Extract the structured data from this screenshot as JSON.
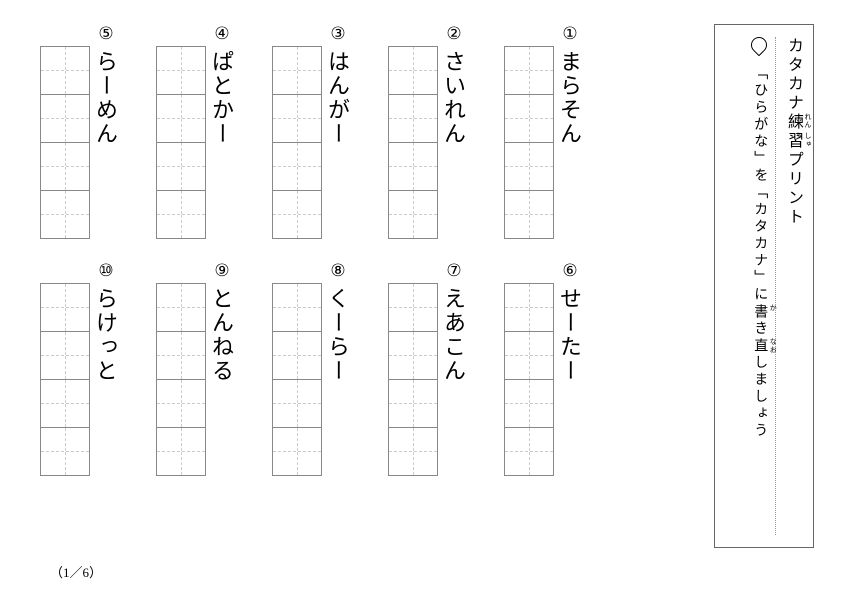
{
  "title": "カタカナ練習プリント",
  "title_ruby": {
    "練": "れん",
    "習": "しゅう"
  },
  "instruction_prefix": "「ひらがな」を「カタカナ」に",
  "instruction_ruby_word": "書き直",
  "instruction_ruby": {
    "書": "か",
    "直": "なお"
  },
  "instruction_suffix": "しましょう",
  "circled": [
    "①",
    "②",
    "③",
    "④",
    "⑤",
    "⑥",
    "⑦",
    "⑧",
    "⑨",
    "⑩"
  ],
  "words": [
    "まらそん",
    "さいれん",
    "はんがー",
    "ぱとかー",
    "らーめん",
    "せーたー",
    "えあこん",
    "くーらー",
    "とんねる",
    "らけっと"
  ],
  "box_count": 4,
  "footer": "（1／6）",
  "colors": {
    "border_outer": "#666",
    "border_box": "#888",
    "dash": "#ccc",
    "dot": "#999",
    "text": "#000",
    "bg": "#ffffff"
  }
}
